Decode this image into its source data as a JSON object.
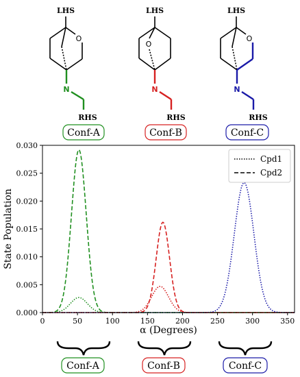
{
  "molecules": [
    {
      "top_label": "LHS",
      "bottom_label": "RHS",
      "n_atom": "N",
      "o_atom": "O",
      "conf_label": "Conf-A",
      "color": "#1f8f1f"
    },
    {
      "top_label": "LHS",
      "bottom_label": "RHS",
      "n_atom": "N",
      "o_atom": "O",
      "conf_label": "Conf-B",
      "color": "#d62020"
    },
    {
      "top_label": "LHS",
      "bottom_label": "RHS",
      "n_atom": "N",
      "o_atom": "O",
      "conf_label": "Conf-C",
      "color": "#1a1aa8"
    }
  ],
  "bottom_labels": [
    "Conf-A",
    "Conf-B",
    "Conf-C"
  ],
  "chart_data": {
    "type": "line",
    "xlabel": "α (Degrees)",
    "ylabel": "State Population",
    "xlim": [
      0,
      360
    ],
    "ylim": [
      0,
      0.03
    ],
    "xticks": [
      "0",
      "50",
      "100",
      "150",
      "200",
      "250",
      "300",
      "350"
    ],
    "yticks": [
      "0.000",
      "0.005",
      "0.010",
      "0.015",
      "0.020",
      "0.025",
      "0.030"
    ],
    "grid": false,
    "legend": {
      "placement": "top-right",
      "entries": [
        {
          "label": "Cpd1",
          "style": "dotted"
        },
        {
          "label": "Cpd2",
          "style": "dashed"
        }
      ]
    },
    "series": [
      {
        "name": "Cpd2",
        "conformer": "Conf-A",
        "color": "#1f8f1f",
        "style": "dashed",
        "peak_x": 52,
        "peak_y": 0.0292,
        "width_sd": 10.5
      },
      {
        "name": "Cpd1",
        "conformer": "Conf-A",
        "color": "#1f8f1f",
        "style": "dotted",
        "peak_x": 52,
        "peak_y": 0.0027,
        "width_sd": 12
      },
      {
        "name": "Cpd2",
        "conformer": "Conf-B",
        "color": "#d62020",
        "style": "dashed",
        "peak_x": 172,
        "peak_y": 0.0162,
        "width_sd": 9.5
      },
      {
        "name": "Cpd1",
        "conformer": "Conf-B",
        "color": "#d62020",
        "style": "dotted",
        "peak_x": 168,
        "peak_y": 0.0047,
        "width_sd": 12
      },
      {
        "name": "Cpd1",
        "conformer": "Conf-C",
        "color": "#1a1aa8",
        "style": "dotted",
        "peak_x": 288,
        "peak_y": 0.0233,
        "width_sd": 14
      }
    ]
  }
}
